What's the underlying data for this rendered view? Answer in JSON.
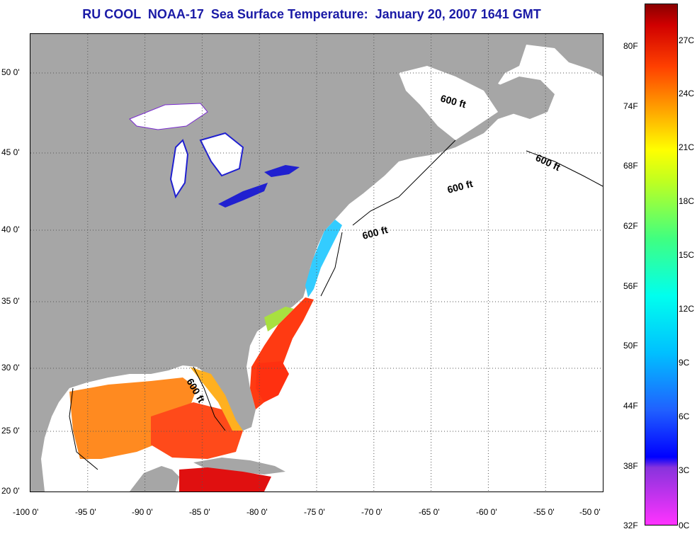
{
  "title": "RU COOL  NOAA-17  Sea Surface Temperature:  January 20, 2007 1641 GMT",
  "map": {
    "lon_labels": [
      "-100 0'",
      "-95 0'",
      "-90 0'",
      "-85 0'",
      "-80 0'",
      "-75 0'",
      "-70 0'",
      "-65 0'",
      "-60 0'",
      "-55 0'",
      "-50 0'"
    ],
    "lat_labels": [
      "50 0'",
      "45 0'",
      "40 0'",
      "35 0'",
      "30 0'",
      "25 0'",
      "20 0'"
    ],
    "contour_label": "600 ft",
    "colors": {
      "land": "#a6a6a6",
      "water_no_data": "#ffffff",
      "gulf_warm": "#ff4a1a",
      "gulf_orange": "#ff8a20",
      "gulf_stream": "#ff3010",
      "shelf_cold": "#33ccff",
      "lake_blue": "#2020d0"
    }
  },
  "colorbar": {
    "fahrenheit": [
      "80F",
      "74F",
      "68F",
      "62F",
      "56F",
      "50F",
      "44F",
      "38F",
      "32F"
    ],
    "celsius": [
      "27C",
      "24C",
      "21C",
      "18C",
      "15C",
      "12C",
      "9C",
      "6C",
      "3C",
      "0C"
    ]
  }
}
